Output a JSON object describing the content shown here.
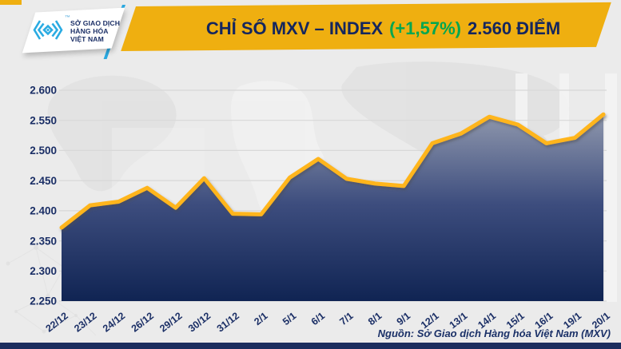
{
  "page": {
    "background": "#ebebeb"
  },
  "header": {
    "banner_color": "#EFAF10",
    "accent_line_color": "#2BA9E0",
    "logo": {
      "org_lines": [
        "SỞ GIAO DỊCH",
        "HÀNG HÓA",
        "VIỆT NAM"
      ],
      "trademark": "™",
      "emblem_color": "#29ABE2"
    },
    "title": {
      "prefix": "CHỈ SỐ MXV – INDEX",
      "change": "(+1,57%)",
      "suffix": "2.560 ĐIỂM",
      "text_color": "#14265E",
      "change_color": "#00A651"
    }
  },
  "chart_data": {
    "type": "area",
    "title": "CHỈ SỐ MXV – INDEX (+1,57%) 2.560 ĐIỂM",
    "x": [
      "22/12",
      "23/12",
      "24/12",
      "26/12",
      "29/12",
      "30/12",
      "31/12",
      "2/1",
      "5/1",
      "6/1",
      "7/1",
      "8/1",
      "9/1",
      "12/1",
      "13/1",
      "14/1",
      "15/1",
      "16/1",
      "19/1",
      "20/1"
    ],
    "series": [
      {
        "name": "MXV-Index",
        "values": [
          2.372,
          2.409,
          2.415,
          2.438,
          2.405,
          2.454,
          2.395,
          2.394,
          2.455,
          2.486,
          2.453,
          2.445,
          2.441,
          2.512,
          2.528,
          2.556,
          2.543,
          2.512,
          2.521,
          2.56
        ]
      }
    ],
    "ylim": [
      2.25,
      2.6
    ],
    "yticks": [
      "2.600",
      "2.550",
      "2.500",
      "2.450",
      "2.400",
      "2.350",
      "2.300",
      "2.250"
    ],
    "ytick_values": [
      2.6,
      2.55,
      2.5,
      2.45,
      2.4,
      2.35,
      2.3,
      2.25
    ],
    "grid": true,
    "legend": "none",
    "xlabel": "",
    "ylabel": "",
    "line_color": "#FFB51A",
    "area_gradient": [
      "#98a0b5",
      "#8a93aa",
      "#3d4d7e",
      "#102453"
    ],
    "label_color": "#1B2F66",
    "gridline_color": "#d8d8d8"
  },
  "footer": {
    "source": "Nguồn: Sở Giao dịch Hàng hóa Việt Nam (MXV)",
    "bar_color": "#1B2D5E"
  }
}
